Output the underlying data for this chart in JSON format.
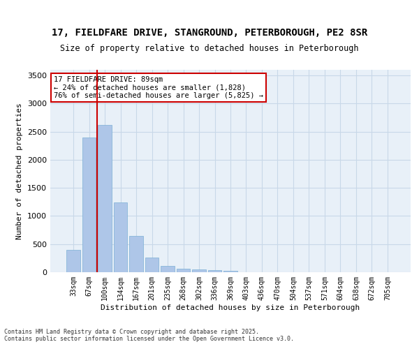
{
  "title_line1": "17, FIELDFARE DRIVE, STANGROUND, PETERBOROUGH, PE2 8SR",
  "title_line2": "Size of property relative to detached houses in Peterborough",
  "xlabel": "Distribution of detached houses by size in Peterborough",
  "ylabel": "Number of detached properties",
  "categories": [
    "33sqm",
    "67sqm",
    "100sqm",
    "134sqm",
    "167sqm",
    "201sqm",
    "235sqm",
    "268sqm",
    "302sqm",
    "336sqm",
    "369sqm",
    "403sqm",
    "436sqm",
    "470sqm",
    "504sqm",
    "537sqm",
    "571sqm",
    "604sqm",
    "638sqm",
    "672sqm",
    "705sqm"
  ],
  "values": [
    400,
    2400,
    2620,
    1240,
    640,
    260,
    110,
    60,
    45,
    35,
    20,
    0,
    0,
    0,
    0,
    0,
    0,
    0,
    0,
    0,
    0
  ],
  "bar_color": "#aec6e8",
  "bar_edge_color": "#7bafd4",
  "bar_color_highlight": "#aec6e8",
  "grid_color": "#c8d8e8",
  "background_color": "#e8f0f8",
  "vline_x": 1,
  "vline_color": "#cc0000",
  "ylim": [
    0,
    3600
  ],
  "yticks": [
    0,
    500,
    1000,
    1500,
    2000,
    2500,
    3000,
    3500
  ],
  "annotation_title": "17 FIELDFARE DRIVE: 89sqm",
  "annotation_line1": "← 24% of detached houses are smaller (1,828)",
  "annotation_line2": "76% of semi-detached houses are larger (5,825) →",
  "footer_line1": "Contains HM Land Registry data © Crown copyright and database right 2025.",
  "footer_line2": "Contains public sector information licensed under the Open Government Licence v3.0."
}
